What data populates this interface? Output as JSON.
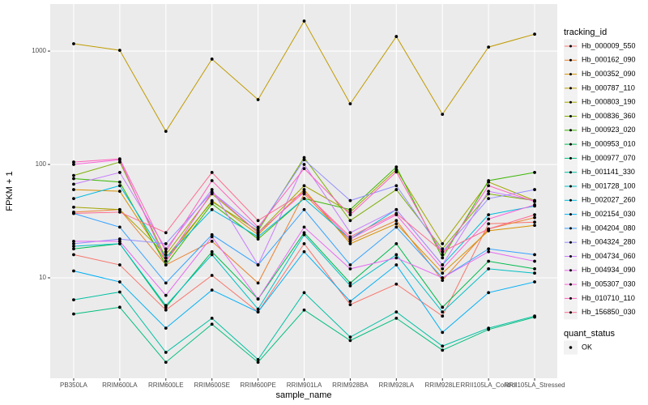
{
  "chart_data": {
    "type": "line",
    "x_label": "sample_name",
    "y_label": "FPKM + 1",
    "log_y": true,
    "grid": true,
    "legend_position": "right",
    "legend_title": "tracking_id",
    "point_color": "#000000",
    "point_legend": {
      "title": "quant_status",
      "labels": [
        "OK"
      ]
    },
    "categories": [
      "PB350LA",
      "RRIM600LA",
      "RRIM600LE",
      "RRIM600SE",
      "RRIM600PE",
      "RRIM901LA",
      "RRIM928BA",
      "RRIM928LA",
      "RRIM928LE",
      "RRII105LA_Control",
      "RRII105LA_Stressed"
    ],
    "ylim": [
      1.3,
      2600
    ],
    "yticks": [
      10,
      100,
      1000
    ],
    "series": [
      {
        "name": "Hb_000009_550",
        "color": "#F8766D",
        "values": [
          16,
          13,
          5.2,
          10.5,
          5.0,
          20,
          5.8,
          8.8,
          4.6,
          30,
          31
        ]
      },
      {
        "name": "Hb_000162_090",
        "color": "#EA8331",
        "values": [
          38,
          40,
          13,
          21,
          9,
          55,
          21,
          32,
          9.5,
          27,
          34
        ]
      },
      {
        "name": "Hb_000352_090",
        "color": "#D89000",
        "values": [
          60,
          58,
          14,
          48,
          24,
          60,
          20,
          30,
          11,
          26,
          29
        ]
      },
      {
        "name": "Hb_000787_110",
        "color": "#C09B00",
        "values": [
          1160,
          1016,
          196,
          850,
          373,
          1840,
          343,
          1345,
          277,
          1085,
          1410
        ]
      },
      {
        "name": "Hb_000803_190",
        "color": "#A3A500",
        "values": [
          42,
          40,
          16,
          55,
          25,
          65,
          38,
          90,
          20,
          70,
          48
        ]
      },
      {
        "name": "Hb_000836_360",
        "color": "#7CAE00",
        "values": [
          80,
          105,
          15,
          47,
          26,
          115,
          32,
          60,
          18,
          55,
          48
        ]
      },
      {
        "name": "Hb_000923_020",
        "color": "#39B600",
        "values": [
          75,
          70,
          13,
          45,
          22,
          50,
          40,
          95,
          15,
          72,
          85
        ]
      },
      {
        "name": "Hb_000953_010",
        "color": "#00BB4E",
        "values": [
          18,
          20,
          5.5,
          17,
          6.5,
          25,
          9,
          20,
          5.5,
          14,
          12
        ]
      },
      {
        "name": "Hb_000977_070",
        "color": "#00BF7D",
        "values": [
          4.8,
          5.5,
          1.8,
          3.9,
          1.8,
          5.2,
          2.8,
          4.4,
          2.3,
          3.5,
          4.5
        ]
      },
      {
        "name": "Hb_001141_330",
        "color": "#00C1A3",
        "values": [
          6.4,
          7.5,
          2.2,
          4.4,
          1.9,
          7.4,
          3.0,
          5.0,
          2.5,
          3.6,
          4.6
        ]
      },
      {
        "name": "Hb_001728_100",
        "color": "#00BFC4",
        "values": [
          19,
          20,
          5.7,
          16,
          5.3,
          24,
          8.5,
          16,
          5.0,
          12,
          11
        ]
      },
      {
        "name": "Hb_002027_260",
        "color": "#00BAE0",
        "values": [
          50,
          65,
          15,
          40,
          23,
          50,
          22,
          40,
          13,
          36,
          43
        ]
      },
      {
        "name": "Hb_002154_030",
        "color": "#00B0F6",
        "values": [
          11.5,
          9.2,
          3.6,
          7.8,
          5.0,
          17,
          6.2,
          13,
          3.3,
          7.4,
          9.2
        ]
      },
      {
        "name": "Hb_004204_080",
        "color": "#35A2FF",
        "values": [
          37,
          28,
          9,
          24,
          13,
          40,
          13,
          28,
          10,
          18,
          16
        ]
      },
      {
        "name": "Hb_004324_280",
        "color": "#9590FF",
        "values": [
          20,
          22,
          20,
          57,
          27,
          110,
          48,
          65,
          17,
          50,
          60
        ]
      },
      {
        "name": "Hb_004734_060",
        "color": "#C77CFF",
        "values": [
          67,
          85,
          18,
          60,
          13,
          100,
          25,
          40,
          13,
          58,
          48
        ]
      },
      {
        "name": "Hb_004934_090",
        "color": "#E76BF3",
        "values": [
          21,
          21,
          7,
          23,
          6.5,
          28,
          12,
          15,
          10,
          17,
          14
        ]
      },
      {
        "name": "Hb_005307_030",
        "color": "#FA62DB",
        "values": [
          100,
          110,
          14,
          57,
          25,
          57,
          22,
          36,
          12,
          33,
          44
        ]
      },
      {
        "name": "Hb_010710_110",
        "color": "#FF62BC",
        "values": [
          105,
          112,
          17,
          72,
          28,
          92,
          36,
          86,
          16,
          65,
          47
        ]
      },
      {
        "name": "Hb_156850_030",
        "color": "#FF6C91",
        "values": [
          37,
          38,
          25,
          85,
          32,
          57,
          23,
          37,
          17,
          27,
          36
        ]
      }
    ]
  }
}
